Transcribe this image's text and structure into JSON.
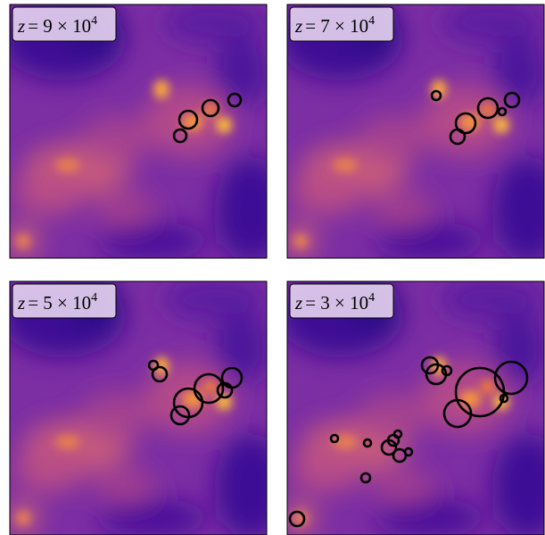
{
  "panels": [
    {
      "label": {
        "variable": "z",
        "rest": "= 9 × 10",
        "exponent": "4"
      }
    },
    {
      "label": {
        "variable": "z",
        "rest": "= 7 × 10",
        "exponent": "4"
      }
    },
    {
      "label": {
        "variable": "z",
        "rest": "= 5 × 10",
        "exponent": "4"
      }
    },
    {
      "label": {
        "variable": "z",
        "rest": "= 3 × 10",
        "exponent": "4"
      }
    }
  ]
}
